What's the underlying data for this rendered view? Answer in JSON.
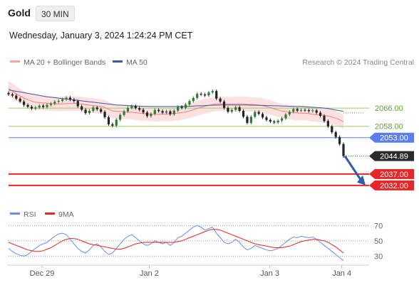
{
  "header": {
    "symbol": "Gold",
    "timeframe": "30 MIN",
    "datetime": "Wednesday, January 3, 2024 1:24:24 PM CET"
  },
  "legend": {
    "items": [
      {
        "label": "MA 20 + Bollinger Bands",
        "color": "#f4a3a3"
      },
      {
        "label": "MA 50",
        "color": "#3c5aa6"
      }
    ],
    "credit": "Research © 2024 Trading Central"
  },
  "colors": {
    "up": "#2e7d32",
    "down": "#222222",
    "support": "#e52727",
    "resistance": "#9acd6a",
    "pivot": "#5a7df0",
    "band_fill": "#fcd7d7",
    "ma20": "#f08080",
    "ma50": "#3c5aa6",
    "rsi": "#6b8cf0",
    "rsi_ma": "#e52727",
    "arrow": "#2e5ea8"
  },
  "chart_data": [
    {
      "type": "candlestick",
      "title": "Gold",
      "ylim": [
        2026,
        2082
      ],
      "x_labels": [
        "Dec 29",
        "Jan 2",
        "Jan 3",
        "Jan 4"
      ],
      "levels": [
        {
          "value": 2066.0,
          "label": "2066.00",
          "kind": "resistance"
        },
        {
          "value": 2058.0,
          "label": "2058.00",
          "kind": "resistance"
        },
        {
          "value": 2053.0,
          "label": "2053.00",
          "kind": "pivot"
        },
        {
          "value": 2037.0,
          "label": "2037.00",
          "kind": "support"
        },
        {
          "value": 2032.0,
          "label": "2032.00",
          "kind": "support"
        }
      ],
      "last_price": {
        "value": 2044.89,
        "label": "2044.89"
      },
      "closes": [
        2072.1,
        2071.5,
        2070.2,
        2068.9,
        2067.4,
        2066.6,
        2065.8,
        2066.3,
        2067.1,
        2066.5,
        2067.4,
        2068.0,
        2068.8,
        2069.2,
        2069.9,
        2070.6,
        2069.8,
        2069.1,
        2066.8,
        2065.3,
        2063.8,
        2064.8,
        2066.3,
        2065.5,
        2064.4,
        2062.0,
        2058.9,
        2058.3,
        2060.9,
        2063.0,
        2064.6,
        2066.1,
        2066.9,
        2066.0,
        2065.3,
        2064.1,
        2062.5,
        2063.5,
        2065.2,
        2064.7,
        2064.0,
        2064.6,
        2063.3,
        2064.9,
        2066.6,
        2066.1,
        2067.6,
        2069.1,
        2070.5,
        2072.3,
        2072.0,
        2071.6,
        2072.9,
        2073.5,
        2070.2,
        2068.9,
        2066.1,
        2064.4,
        2065.2,
        2066.4,
        2064.8,
        2062.2,
        2059.5,
        2062.2,
        2064.3,
        2063.5,
        2061.9,
        2060.8,
        2060.1,
        2059.7,
        2060.5,
        2061.5,
        2063.2,
        2064.4,
        2065.6,
        2064.9,
        2065.2,
        2065.1,
        2064.7,
        2065.0,
        2064.0,
        2062.6,
        2060.3,
        2058.0,
        2055.4,
        2053.3,
        2050.2,
        2044.9
      ],
      "ma20": [
        2074.7,
        2073.5,
        2072.4,
        2071.4,
        2070.4,
        2069.7,
        2069.1,
        2068.6,
        2068.4,
        2068.3,
        2068.2,
        2068.0,
        2067.9,
        2067.8,
        2067.9,
        2068.0,
        2068.0,
        2068.1,
        2068.0,
        2067.8,
        2067.5,
        2067.3,
        2067.1,
        2066.9,
        2066.8,
        2066.3,
        2065.5,
        2064.8,
        2064.6,
        2064.5,
        2064.4,
        2064.3,
        2064.2,
        2064.0,
        2063.8,
        2063.6,
        2063.5,
        2063.4,
        2063.3,
        2063.3,
        2063.4,
        2063.4,
        2063.5,
        2063.7,
        2063.8,
        2064.0,
        2064.3,
        2064.8,
        2065.3,
        2065.9,
        2066.4,
        2066.8,
        2067.2,
        2067.6,
        2067.8,
        2067.9,
        2067.9,
        2067.8,
        2067.8,
        2067.9,
        2067.9,
        2067.9,
        2067.7,
        2067.6,
        2067.5,
        2067.4,
        2067.1,
        2066.7,
        2066.3,
        2065.7,
        2065.2,
        2064.7,
        2064.5,
        2064.2,
        2064.0,
        2063.9,
        2063.8,
        2063.8,
        2063.6,
        2063.3,
        2063.1,
        2063.0,
        2062.8,
        2062.5,
        2062.1,
        2061.6,
        2060.9,
        2059.9
      ],
      "ma50": [
        2074.0,
        2073.7,
        2073.4,
        2073.1,
        2072.8,
        2072.5,
        2072.2,
        2071.9,
        2071.6,
        2071.3,
        2071.0,
        2070.8,
        2070.6,
        2070.4,
        2070.2,
        2070.0,
        2069.8,
        2069.6,
        2069.4,
        2069.2,
        2069.0,
        2068.8,
        2068.6,
        2068.4,
        2068.2,
        2068.0,
        2067.8,
        2067.6,
        2067.4,
        2067.3,
        2067.2,
        2067.1,
        2067.0,
        2066.9,
        2066.9,
        2066.8,
        2066.8,
        2066.7,
        2066.7,
        2066.7,
        2066.7,
        2066.7,
        2066.7,
        2066.7,
        2066.7,
        2066.7,
        2066.8,
        2066.8,
        2066.9,
        2067.0,
        2067.0,
        2067.1,
        2067.2,
        2067.3,
        2067.3,
        2067.4,
        2067.4,
        2067.4,
        2067.4,
        2067.4,
        2067.4,
        2067.4,
        2067.4,
        2067.3,
        2067.3,
        2067.2,
        2067.2,
        2067.1,
        2067.1,
        2067.0,
        2067.0,
        2066.9,
        2066.9,
        2066.8,
        2066.8,
        2066.7,
        2066.7,
        2066.6,
        2066.5,
        2066.4,
        2066.3,
        2066.2,
        2066.0,
        2065.8,
        2065.5,
        2065.2,
        2064.9,
        2064.6
      ]
    },
    {
      "type": "line",
      "title": "RSI",
      "series": [
        {
          "name": "RSI",
          "values": [
            40,
            36,
            33,
            31,
            30,
            32,
            36,
            40,
            44,
            46,
            48,
            52,
            56,
            59,
            60,
            58,
            52,
            46,
            40,
            36,
            34,
            38,
            44,
            46,
            42,
            36,
            32,
            34,
            40,
            46,
            52,
            56,
            58,
            54,
            50,
            46,
            44,
            46,
            50,
            48,
            46,
            48,
            44,
            48,
            54,
            56,
            60,
            64,
            68,
            70,
            68,
            64,
            66,
            68,
            60,
            54,
            48,
            46,
            48,
            52,
            48,
            42,
            38,
            40,
            44,
            42,
            40,
            38,
            37,
            38,
            40,
            44,
            48,
            52,
            55,
            54,
            56,
            55,
            54,
            55,
            52,
            48,
            44,
            40,
            36,
            32,
            28,
            24
          ]
        },
        {
          "name": "9MA",
          "values": [
            48,
            46,
            44,
            42,
            40,
            38,
            37,
            36,
            36,
            37,
            39,
            41,
            44,
            47,
            50,
            52,
            53,
            53,
            52,
            50,
            48,
            46,
            45,
            44,
            43,
            42,
            41,
            40,
            39,
            39,
            40,
            42,
            44,
            46,
            47,
            48,
            48,
            48,
            48,
            48,
            48,
            48,
            48,
            48,
            49,
            50,
            52,
            54,
            56,
            58,
            60,
            62,
            64,
            65,
            65,
            64,
            62,
            60,
            58,
            56,
            54,
            52,
            50,
            48,
            46,
            45,
            44,
            43,
            42,
            41,
            41,
            41,
            42,
            43,
            45,
            47,
            49,
            50,
            51,
            52,
            52,
            51,
            50,
            48,
            45,
            42,
            38,
            34
          ]
        }
      ],
      "ylim": [
        20,
        75
      ],
      "ticks": [
        70,
        50,
        30
      ],
      "tick_labels": [
        "70",
        "50",
        "30"
      ]
    }
  ]
}
